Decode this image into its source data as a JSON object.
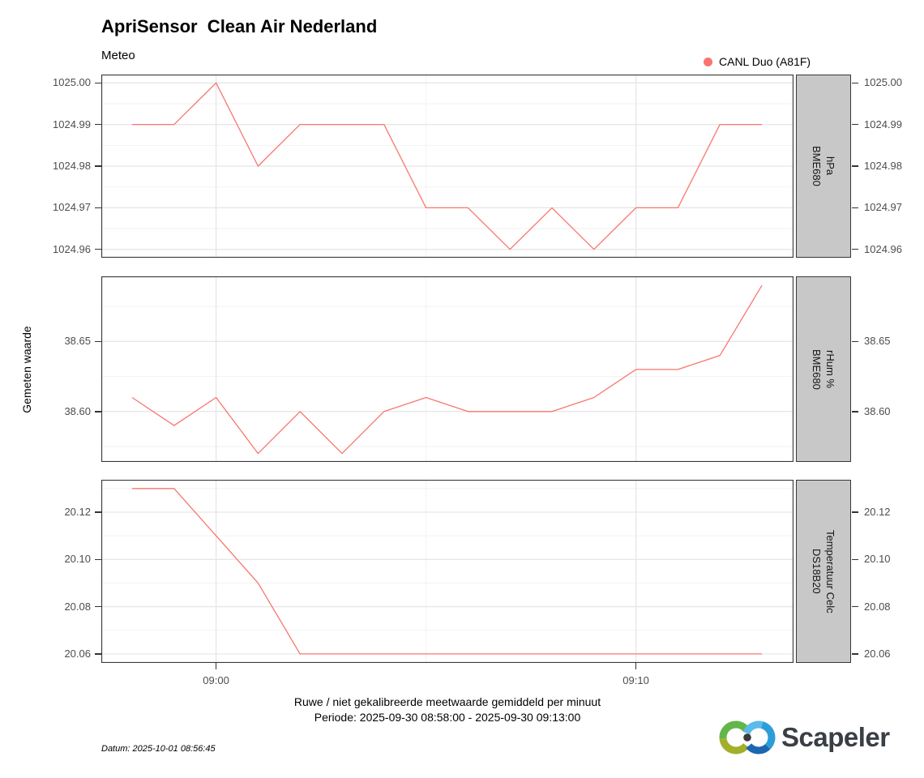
{
  "header": {
    "title": "ApriSensor  Clean Air Nederland",
    "subtitle": "Meteo"
  },
  "legend": {
    "label": "CANL Duo (A81F)",
    "color": "#F8766D"
  },
  "axes": {
    "y_title": "Gemeten waarde",
    "x_title_line1": "Ruwe / niet gekalibreerde meetwaarde gemiddeld per minuut",
    "x_title_line2": "Periode: 2025-09-30 08:58:00 - 2025-09-30 09:13:00",
    "xlim": [
      -0.733,
      15.753
    ],
    "x_ticks": [
      {
        "t": 2,
        "label": "09:00"
      },
      {
        "t": 12,
        "label": "09:10"
      }
    ],
    "x_minor": [
      7
    ]
  },
  "caption": "Datum: 2025-10-01 08:56:45",
  "logo": {
    "text": "Scapeler"
  },
  "style": {
    "grid_major": "#E5E5E5",
    "grid_minor": "#F2F2F2",
    "panel_border": "#383838",
    "line_width": 1.3
  },
  "chart_data": [
    {
      "type": "line",
      "facet": "BME680 hPa",
      "strip_lines": [
        "BME680",
        "hPa"
      ],
      "series": "CANL Duo (A81F)",
      "x_times": [
        "08:58",
        "08:59",
        "09:00",
        "09:01",
        "09:02",
        "09:03",
        "09:04",
        "09:05",
        "09:06",
        "09:07",
        "09:08",
        "09:09",
        "09:10",
        "09:11",
        "09:12",
        "09:13"
      ],
      "values": [
        1024.99,
        1024.99,
        1025.0,
        1024.98,
        1024.99,
        1024.99,
        1024.99,
        1024.97,
        1024.97,
        1024.96,
        1024.97,
        1024.96,
        1024.97,
        1024.97,
        1024.99,
        1024.99
      ],
      "ylim": [
        1024.958,
        1025.002
      ],
      "y_ticks": [
        {
          "v": 1025.0,
          "label": "1025.00"
        },
        {
          "v": 1024.99,
          "label": "1024.99"
        },
        {
          "v": 1024.98,
          "label": "1024.98"
        },
        {
          "v": 1024.97,
          "label": "1024.97"
        },
        {
          "v": 1024.96,
          "label": "1024.96"
        }
      ],
      "y_minor": [
        1024.995,
        1024.985,
        1024.975,
        1024.965
      ]
    },
    {
      "type": "line",
      "facet": "BME680 rHum %",
      "strip_lines": [
        "BME680",
        "rHum %"
      ],
      "series": "CANL Duo (A81F)",
      "x_times": [
        "08:58",
        "08:59",
        "09:00",
        "09:01",
        "09:02",
        "09:03",
        "09:04",
        "09:05",
        "09:06",
        "09:07",
        "09:08",
        "09:09",
        "09:10",
        "09:11",
        "09:12",
        "09:13"
      ],
      "values": [
        38.61,
        38.59,
        38.61,
        38.57,
        38.6,
        38.57,
        38.6,
        38.61,
        38.6,
        38.6,
        38.6,
        38.61,
        38.63,
        38.63,
        38.64,
        38.69
      ],
      "ylim": [
        38.564,
        38.6965
      ],
      "y_ticks": [
        {
          "v": 38.65,
          "label": "38.65"
        },
        {
          "v": 38.6,
          "label": "38.60"
        }
      ],
      "y_minor": [
        38.675,
        38.625,
        38.575
      ]
    },
    {
      "type": "line",
      "facet": "DS18B20 Temperatuur Celc",
      "strip_lines": [
        "DS18B20",
        "Temperatuur Celc"
      ],
      "series": "CANL Duo (A81F)",
      "x_times": [
        "08:58",
        "08:59",
        "09:00",
        "09:01",
        "09:02",
        "09:03",
        "09:04",
        "09:05",
        "09:06",
        "09:07",
        "09:08",
        "09:09",
        "09:10",
        "09:11",
        "09:12",
        "09:13"
      ],
      "values": [
        20.13,
        20.13,
        20.11,
        20.09,
        20.06,
        20.06,
        20.06,
        20.06,
        20.06,
        20.06,
        20.06,
        20.06,
        20.06,
        20.06,
        20.06,
        20.06
      ],
      "ylim": [
        20.0562,
        20.1337
      ],
      "y_ticks": [
        {
          "v": 20.12,
          "label": "20.12"
        },
        {
          "v": 20.1,
          "label": "20.10"
        },
        {
          "v": 20.08,
          "label": "20.08"
        },
        {
          "v": 20.06,
          "label": "20.06"
        }
      ],
      "y_minor": [
        20.13,
        20.11,
        20.09,
        20.07
      ]
    }
  ]
}
